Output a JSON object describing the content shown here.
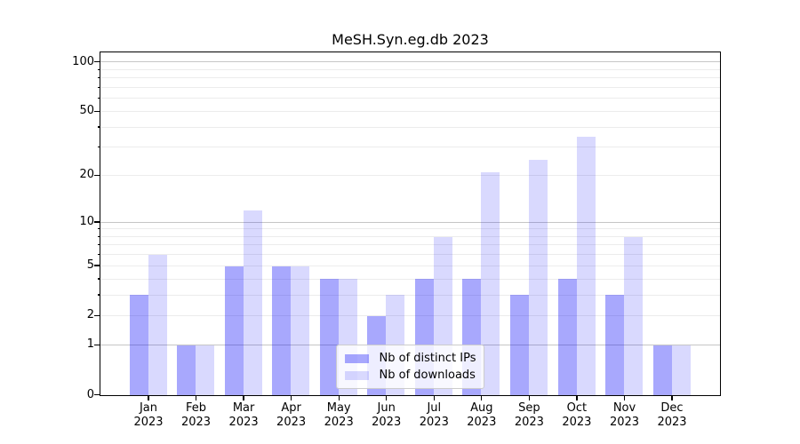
{
  "chart": {
    "title": "MeSH.Syn.eg.db 2023"
  },
  "chart_data": {
    "type": "bar",
    "title": "MeSH.Syn.eg.db 2023",
    "xlabel": "",
    "ylabel": "",
    "scale": "log10(1+x)",
    "ylim": [
      0,
      114
    ],
    "grid": true,
    "legend_position": "bottom-center",
    "categories": [
      "Jan",
      "Feb",
      "Mar",
      "Apr",
      "May",
      "Jun",
      "Jul",
      "Aug",
      "Sep",
      "Oct",
      "Nov",
      "Dec"
    ],
    "year": "2023",
    "series": [
      {
        "name": "Nb of distinct IPs",
        "color": "rgba(0,0,250,0.34)",
        "values": [
          3,
          1,
          5,
          5,
          4,
          2,
          4,
          4,
          3,
          4,
          3,
          1
        ]
      },
      {
        "name": "Nb of downloads",
        "color": "rgba(0,0,250,0.15)",
        "values": [
          6,
          1,
          12,
          5,
          4,
          3,
          8,
          21,
          25,
          35,
          8,
          1
        ]
      }
    ],
    "y_tick_values": [
      0,
      1,
      2,
      5,
      10,
      20,
      50,
      100
    ],
    "y_tick_labels": [
      "0",
      "1",
      "2",
      "5",
      "10",
      "20",
      "50",
      "100"
    ],
    "y_major_gridlines": [
      1,
      10,
      100
    ],
    "y_minor_gridlines": [
      2,
      3,
      4,
      5,
      6,
      7,
      8,
      9,
      20,
      30,
      40,
      50,
      60,
      70,
      80,
      90
    ],
    "grid_major_color": "#c6c6c6",
    "grid_minor_color": "#ececec"
  }
}
